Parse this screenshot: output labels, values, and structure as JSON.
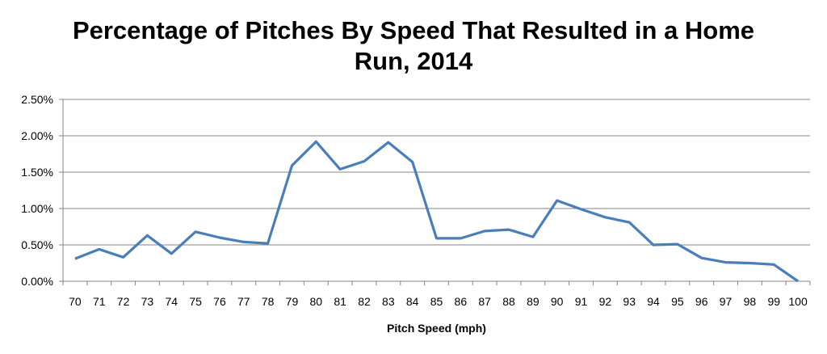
{
  "chart_data": {
    "type": "line",
    "title_line1": "Percentage of Pitches By Speed That Resulted in a Home",
    "title_line2": "Run, 2014",
    "xlabel": "Pitch Speed (mph)",
    "ylabel": "",
    "categories": [
      "70",
      "71",
      "72",
      "73",
      "74",
      "75",
      "76",
      "77",
      "78",
      "79",
      "80",
      "81",
      "82",
      "83",
      "84",
      "85",
      "86",
      "87",
      "88",
      "89",
      "90",
      "91",
      "92",
      "93",
      "94",
      "95",
      "96",
      "97",
      "98",
      "99",
      "100"
    ],
    "values": [
      0.31,
      0.44,
      0.33,
      0.63,
      0.38,
      0.68,
      0.6,
      0.54,
      0.52,
      1.59,
      1.92,
      1.54,
      1.65,
      1.91,
      1.64,
      0.59,
      0.59,
      0.69,
      0.71,
      0.61,
      1.11,
      0.99,
      0.88,
      0.81,
      0.5,
      0.51,
      0.32,
      0.26,
      0.25,
      0.23,
      0.0
    ],
    "yticks": [
      "0.00%",
      "0.50%",
      "1.00%",
      "1.50%",
      "2.00%",
      "2.50%"
    ],
    "ylim": [
      0,
      2.5
    ],
    "grid": true,
    "legend": "none",
    "line_color": "#4a7ebb",
    "grid_color": "#868686"
  }
}
